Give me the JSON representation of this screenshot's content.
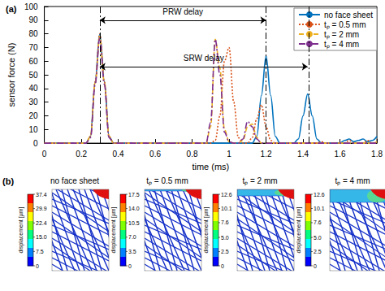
{
  "chart_data": {
    "type": "line",
    "label": "(a)",
    "xlabel": "time (ms)",
    "ylabel": "sensor force (N)",
    "x": [
      0,
      0.025,
      0.05,
      0.075,
      0.1,
      0.125,
      0.15,
      0.175,
      0.2,
      0.225,
      0.25,
      0.275,
      0.3,
      0.325,
      0.35,
      0.375,
      0.4,
      0.425,
      0.45,
      0.475,
      0.5,
      0.525,
      0.55,
      0.575,
      0.6,
      0.625,
      0.65,
      0.675,
      0.7,
      0.725,
      0.75,
      0.775,
      0.8,
      0.825,
      0.85,
      0.875,
      0.9,
      0.925,
      0.95,
      0.975,
      1.0,
      1.025,
      1.05,
      1.075,
      1.1,
      1.125,
      1.15,
      1.175,
      1.2,
      1.225,
      1.25,
      1.275,
      1.3,
      1.325,
      1.35,
      1.375,
      1.4,
      1.425,
      1.45,
      1.475,
      1.5,
      1.525,
      1.55,
      1.575,
      1.6,
      1.625,
      1.65,
      1.675,
      1.7,
      1.725,
      1.75,
      1.775,
      1.8
    ],
    "series": [
      {
        "name": "no face sheet",
        "color": "#0072BD",
        "line_style": "solid",
        "values": [
          0,
          0,
          0,
          0,
          0,
          0,
          0,
          0,
          0,
          0,
          5,
          45,
          80,
          45,
          5,
          0,
          0,
          0,
          0,
          0,
          0,
          0,
          0,
          0,
          0,
          0,
          0,
          0,
          0,
          0,
          0,
          0,
          0,
          0,
          0,
          0,
          0,
          0,
          0,
          0,
          0,
          0,
          0,
          0,
          0,
          0,
          5,
          35,
          64,
          35,
          5,
          0,
          0,
          0,
          0,
          3,
          20,
          36,
          20,
          3,
          0,
          0,
          0,
          0,
          0,
          2,
          3,
          1,
          2,
          3,
          1,
          2,
          5
        ]
      },
      {
        "name": "tₚ = 0.5 mm",
        "color": "#D95319",
        "line_style": "dotted",
        "values": [
          0,
          0,
          0,
          0,
          0,
          0,
          0,
          0,
          0,
          0,
          5,
          45,
          80,
          45,
          5,
          0,
          0,
          0,
          0,
          0,
          0,
          0,
          0,
          0,
          0,
          0,
          0,
          0,
          0,
          0,
          0,
          0,
          0,
          0,
          0,
          0,
          0,
          2,
          20,
          60,
          70,
          30,
          4,
          0,
          0,
          4,
          18,
          28,
          12,
          2,
          0,
          0,
          0,
          0,
          0,
          0,
          0,
          0,
          0,
          0,
          1,
          0,
          0,
          0,
          0,
          0,
          2,
          0,
          0,
          0,
          2,
          0,
          1
        ]
      },
      {
        "name": "tₚ = 2 mm",
        "color": "#EDB120",
        "line_style": "dashed",
        "values": [
          0,
          0,
          0,
          0,
          0,
          0,
          0,
          0,
          0,
          0,
          5,
          44,
          78,
          44,
          5,
          0,
          0,
          0,
          0,
          0,
          0,
          0,
          0,
          0,
          0,
          0,
          0,
          0,
          0,
          0,
          0,
          0,
          0,
          0,
          0,
          0,
          12,
          76,
          55,
          10,
          1,
          0,
          0,
          2,
          12,
          14,
          4,
          0,
          0,
          0,
          0,
          0,
          0,
          0,
          0,
          0,
          0,
          0,
          0,
          0,
          0,
          0,
          0,
          0,
          0,
          0,
          0,
          0,
          0,
          0,
          0,
          0,
          1
        ]
      },
      {
        "name": "tₚ = 4 mm",
        "color": "#7E2F8E",
        "line_style": "dash-dot",
        "values": [
          0,
          0,
          0,
          0,
          0,
          0,
          0,
          0,
          0,
          0,
          4,
          43,
          77,
          43,
          4,
          0,
          0,
          0,
          0,
          0,
          0,
          0,
          0,
          0,
          0,
          0,
          0,
          0,
          0,
          0,
          0,
          0,
          0,
          0,
          0,
          0,
          15,
          76,
          50,
          8,
          1,
          0,
          0,
          3,
          16,
          12,
          3,
          0,
          0,
          0,
          0,
          0,
          0,
          0,
          0,
          0,
          0,
          0,
          0,
          0,
          0,
          0,
          0,
          0,
          0,
          0,
          0,
          0,
          0,
          0,
          0,
          0,
          0
        ]
      }
    ],
    "xlim": [
      0,
      1.8
    ],
    "xticks": [
      0,
      0.2,
      0.4,
      0.6,
      0.8,
      1,
      1.2,
      1.4,
      1.6,
      1.8
    ],
    "ylim": [
      0,
      100
    ],
    "yticks": [
      0,
      10,
      20,
      30,
      40,
      50,
      60,
      70,
      80,
      90,
      100
    ],
    "grid": false,
    "legend": "upper right",
    "vlines": [
      0.3,
      1.2,
      1.425
    ],
    "annotations": [
      {
        "text": "PRW delay",
        "x1": 0.3,
        "x2": 1.2,
        "y": 90
      },
      {
        "text": "SRW delay",
        "x1": 0.3,
        "x2": 1.425,
        "y": 56
      }
    ]
  },
  "contour_panels": {
    "label": "(b)",
    "colorbar_title": "displacement [µm]",
    "panels": [
      {
        "title": "no face sheet",
        "face_sheet_mm": 0,
        "colorbar_range": [
          0,
          37.4
        ],
        "colorbar_ticks": [
          37.4,
          29.9,
          22.4,
          {
            "value": 15,
            "label": "15.0"
          },
          7.5,
          0
        ]
      },
      {
        "title": "tₚ = 0.5 mm",
        "face_sheet_mm": 0.5,
        "colorbar_range": [
          0,
          17.5
        ],
        "colorbar_ticks": [
          17.5,
          {
            "value": 14,
            "label": "14.0"
          },
          10.5,
          {
            "value": 7,
            "label": "7.0"
          },
          3.5,
          0
        ]
      },
      {
        "title": "tₚ = 2 mm",
        "face_sheet_mm": 2,
        "colorbar_range": [
          0,
          12.6
        ],
        "colorbar_ticks": [
          12.6,
          10.1,
          7.6,
          {
            "value": 5,
            "label": "5.0"
          },
          2.5,
          0
        ]
      },
      {
        "title": "tₚ = 4 mm",
        "face_sheet_mm": 4,
        "colorbar_range": [
          0,
          12.6
        ],
        "colorbar_ticks": [
          12.6,
          10.1,
          7.6,
          {
            "value": 5,
            "label": "5.0"
          },
          2.5,
          0
        ]
      }
    ]
  }
}
